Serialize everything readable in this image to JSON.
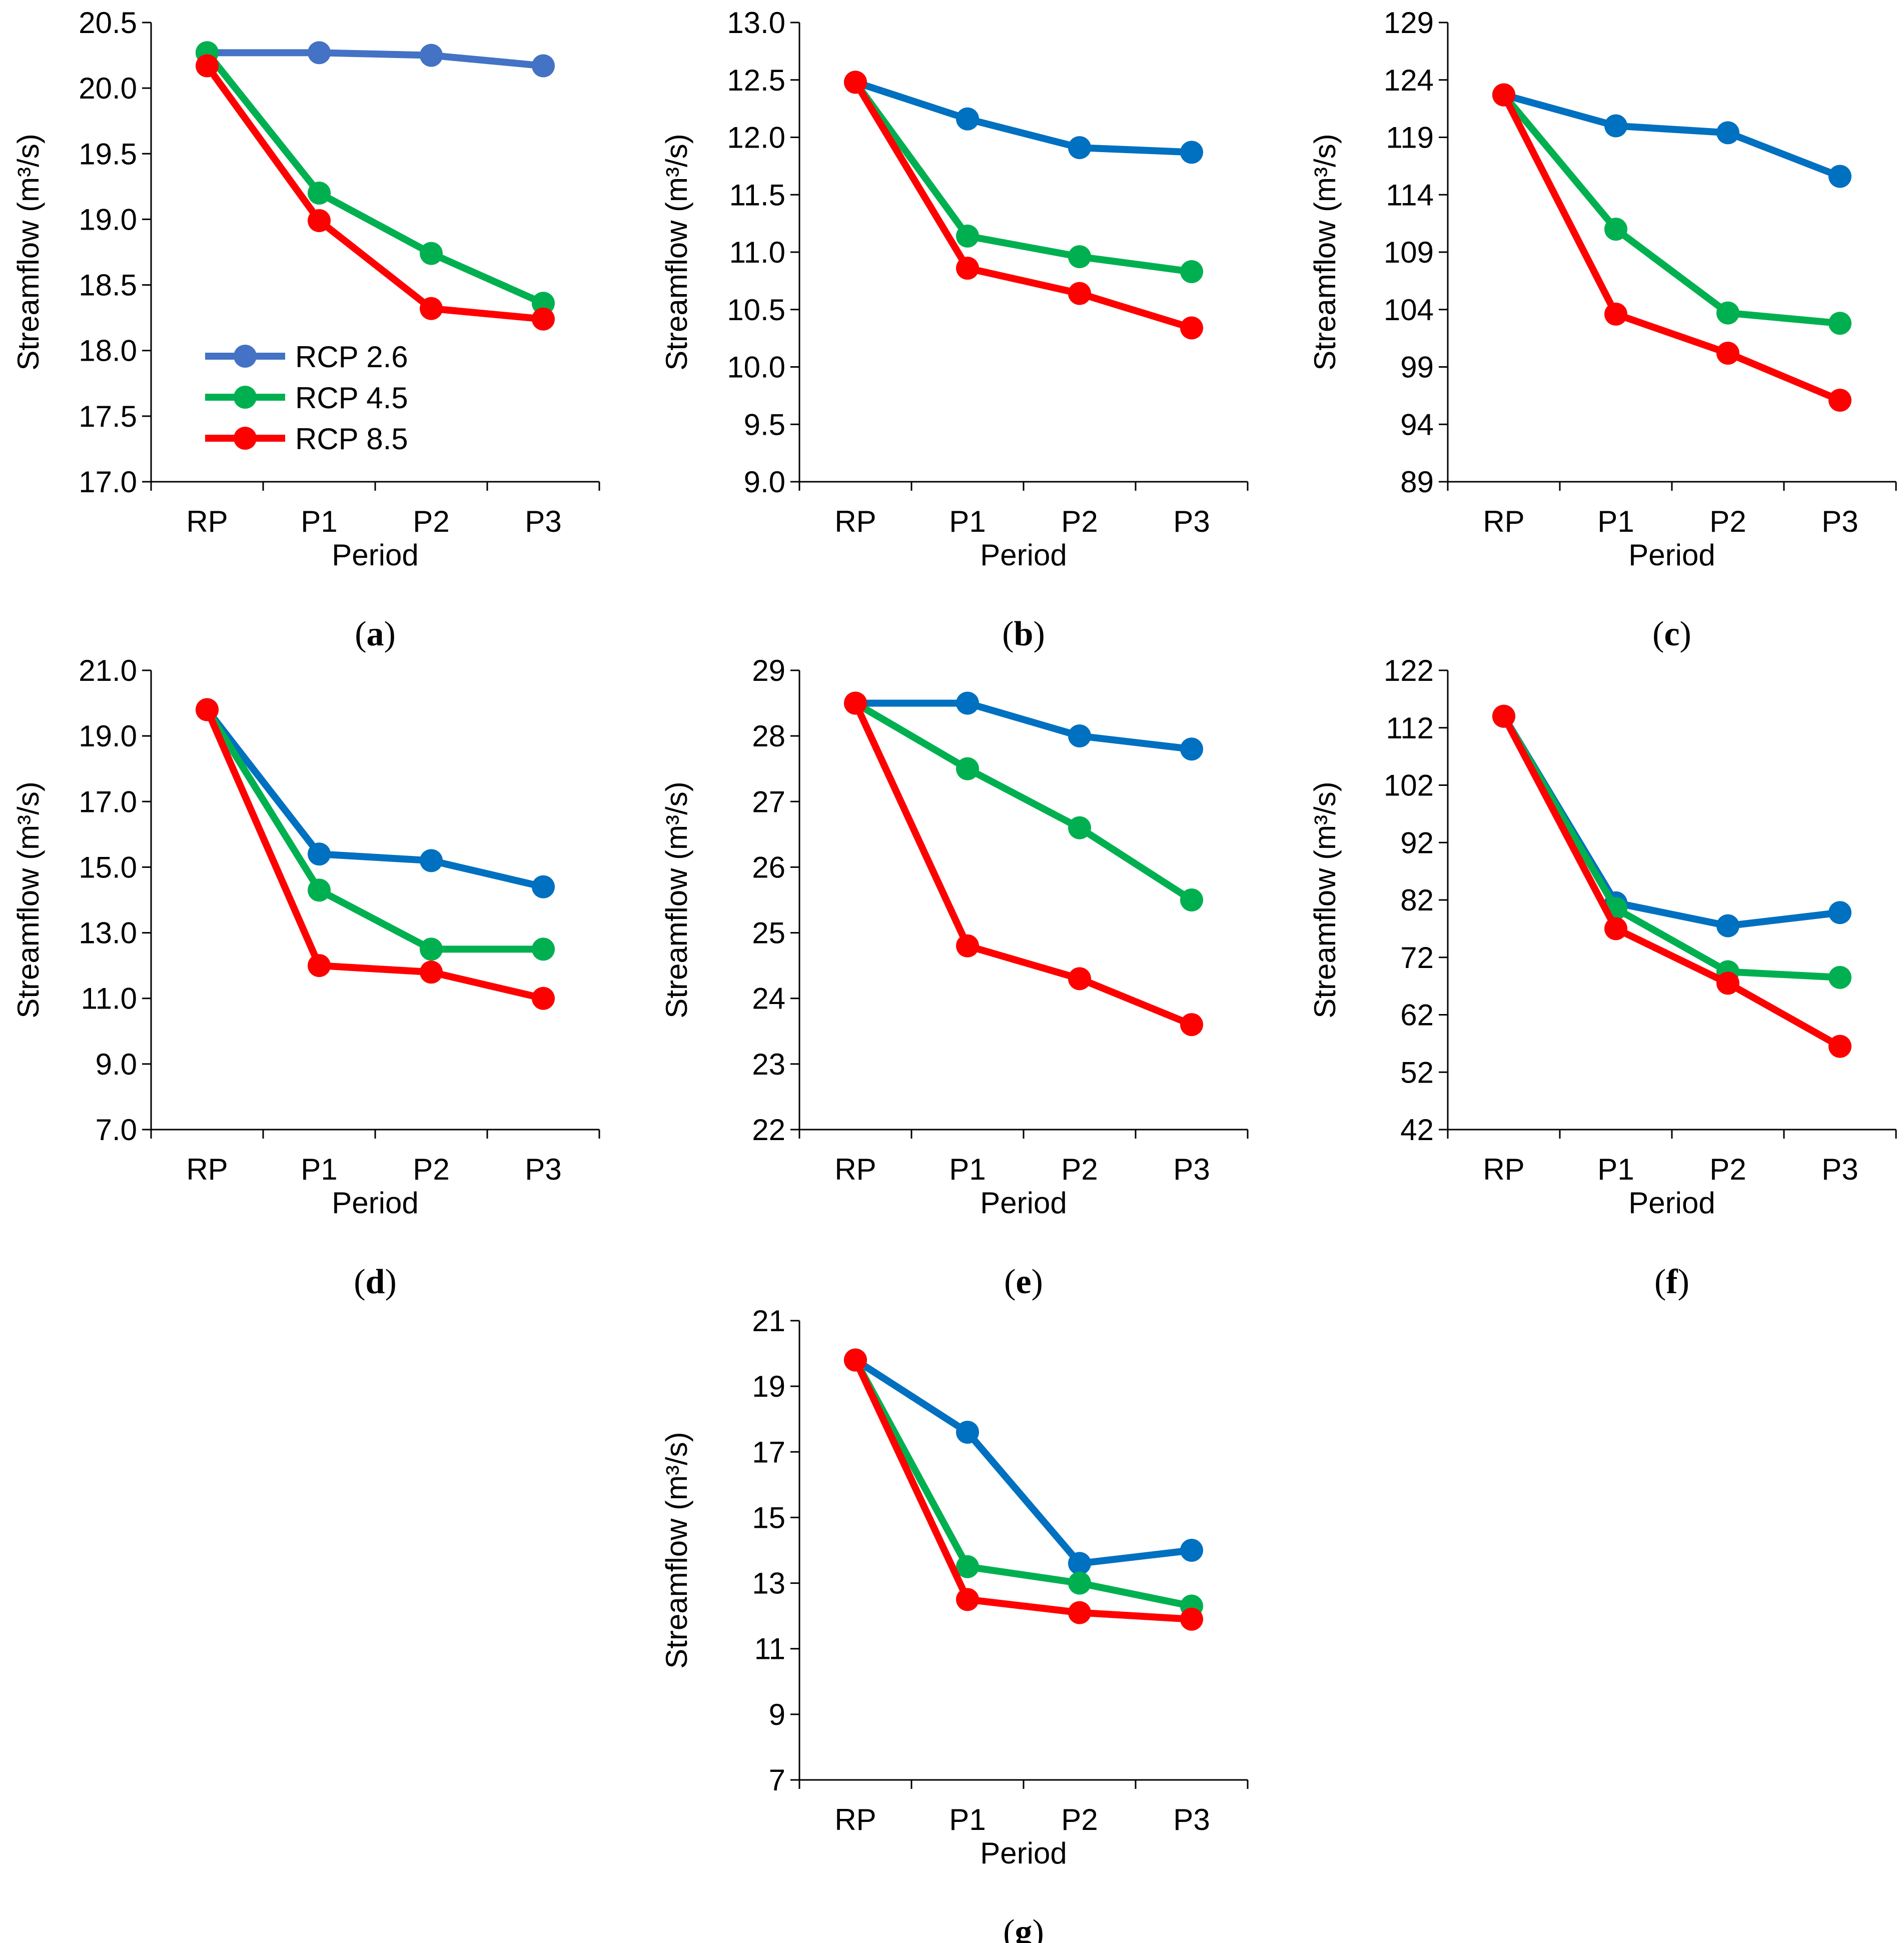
{
  "figure": {
    "series_names": [
      "RCP 2.6",
      "RCP 4.5",
      "RCP 8.5"
    ],
    "series_colors": [
      "#4472C4",
      "#00B050",
      "#FF0000"
    ],
    "legend_labels": [
      "RCP 2.6",
      "RCP 4.5",
      "RCP 8.5"
    ],
    "legend_colors": [
      "#4472C4",
      "#00B050",
      "#FF0000"
    ]
  },
  "chart_data": [
    {
      "type": "line",
      "panel_label": "a",
      "xlabel": "Period",
      "ylabel": "Streamflow (m³/s)",
      "categories": [
        "RP",
        "P1",
        "P2",
        "P3"
      ],
      "ylim": [
        17.0,
        20.5
      ],
      "yticks": [
        "17.0",
        "17.5",
        "18.0",
        "18.5",
        "19.0",
        "19.5",
        "20.0",
        "20.5"
      ],
      "legend": true,
      "series": [
        {
          "name": "RCP 2.6",
          "color": "#4472C4",
          "values": [
            20.27,
            20.27,
            20.25,
            20.17
          ]
        },
        {
          "name": "RCP 4.5",
          "color": "#00B050",
          "values": [
            20.27,
            19.2,
            18.74,
            18.36
          ]
        },
        {
          "name": "RCP 8.5",
          "color": "#FF0000",
          "values": [
            20.17,
            18.99,
            18.32,
            18.24
          ]
        }
      ]
    },
    {
      "type": "line",
      "panel_label": "b",
      "xlabel": "Period",
      "ylabel": "Streamflow (m³/s)",
      "categories": [
        "RP",
        "P1",
        "P2",
        "P3"
      ],
      "ylim": [
        9.0,
        13.0
      ],
      "yticks": [
        "9.0",
        "9.5",
        "10.0",
        "10.5",
        "11.0",
        "11.5",
        "12.0",
        "12.5",
        "13.0"
      ],
      "legend": false,
      "series": [
        {
          "name": "RCP 2.6",
          "color": "#0070C0",
          "values": [
            12.48,
            12.16,
            11.91,
            11.87
          ]
        },
        {
          "name": "RCP 4.5",
          "color": "#00B050",
          "values": [
            12.48,
            11.14,
            10.96,
            10.83
          ]
        },
        {
          "name": "RCP 8.5",
          "color": "#FF0000",
          "values": [
            12.48,
            10.86,
            10.64,
            10.34
          ]
        }
      ]
    },
    {
      "type": "line",
      "panel_label": "c",
      "xlabel": "Period",
      "ylabel": "Streamflow (m³/s)",
      "categories": [
        "RP",
        "P1",
        "P2",
        "P3"
      ],
      "ylim": [
        89,
        129
      ],
      "yticks": [
        "89",
        "94",
        "99",
        "104",
        "109",
        "114",
        "119",
        "124",
        "129"
      ],
      "legend": false,
      "series": [
        {
          "name": "RCP 2.6",
          "color": "#0070C0",
          "values": [
            122.7,
            120.0,
            119.4,
            115.6
          ]
        },
        {
          "name": "RCP 4.5",
          "color": "#00B050",
          "values": [
            122.7,
            111.0,
            103.7,
            102.8
          ]
        },
        {
          "name": "RCP 8.5",
          "color": "#FF0000",
          "values": [
            122.7,
            103.6,
            100.2,
            96.1
          ]
        }
      ]
    },
    {
      "type": "line",
      "panel_label": "d",
      "xlabel": "Period",
      "ylabel": "Streamflow (m³/s)",
      "categories": [
        "RP",
        "P1",
        "P2",
        "P3"
      ],
      "ylim": [
        7.0,
        21.0
      ],
      "yticks": [
        "7.0",
        "9.0",
        "11.0",
        "13.0",
        "15.0",
        "17.0",
        "19.0",
        "21.0"
      ],
      "legend": false,
      "series": [
        {
          "name": "RCP 2.6",
          "color": "#0070C0",
          "values": [
            19.8,
            15.4,
            15.2,
            14.4
          ]
        },
        {
          "name": "RCP 4.5",
          "color": "#00B050",
          "values": [
            19.8,
            14.3,
            12.5,
            12.5
          ]
        },
        {
          "name": "RCP 8.5",
          "color": "#FF0000",
          "values": [
            19.8,
            12.0,
            11.8,
            11.0
          ]
        }
      ]
    },
    {
      "type": "line",
      "panel_label": "e",
      "xlabel": "Period",
      "ylabel": "Streamflow (m³/s)",
      "categories": [
        "RP",
        "P1",
        "P2",
        "P3"
      ],
      "ylim": [
        22,
        29
      ],
      "yticks": [
        "22",
        "23",
        "24",
        "25",
        "26",
        "27",
        "28",
        "29"
      ],
      "legend": false,
      "series": [
        {
          "name": "RCP 2.6",
          "color": "#0070C0",
          "values": [
            28.5,
            28.5,
            28.0,
            27.8
          ]
        },
        {
          "name": "RCP 4.5",
          "color": "#00B050",
          "values": [
            28.5,
            27.5,
            26.6,
            25.5
          ]
        },
        {
          "name": "RCP 8.5",
          "color": "#FF0000",
          "values": [
            28.5,
            24.8,
            24.3,
            23.6
          ]
        }
      ]
    },
    {
      "type": "line",
      "panel_label": "f",
      "xlabel": "Period",
      "ylabel": "Streamflow (m³/s)",
      "categories": [
        "RP",
        "P1",
        "P2",
        "P3"
      ],
      "ylim": [
        42,
        122
      ],
      "yticks": [
        "42",
        "52",
        "62",
        "72",
        "82",
        "92",
        "102",
        "112",
        "122"
      ],
      "legend": false,
      "series": [
        {
          "name": "RCP 2.6",
          "color": "#0070C0",
          "values": [
            114.0,
            81.5,
            77.5,
            79.8
          ]
        },
        {
          "name": "RCP 4.5",
          "color": "#00B050",
          "values": [
            114.0,
            80.5,
            69.5,
            68.5
          ]
        },
        {
          "name": "RCP 8.5",
          "color": "#FF0000",
          "values": [
            114.0,
            77.0,
            67.5,
            56.5
          ]
        }
      ]
    },
    {
      "type": "line",
      "panel_label": "g",
      "xlabel": "Period",
      "ylabel": "Streamflow (m³/s)",
      "categories": [
        "RP",
        "P1",
        "P2",
        "P3"
      ],
      "ylim": [
        7,
        21
      ],
      "yticks": [
        "7",
        "9",
        "11",
        "13",
        "15",
        "17",
        "19",
        "21"
      ],
      "legend": false,
      "series": [
        {
          "name": "RCP 2.6",
          "color": "#0070C0",
          "values": [
            19.8,
            17.6,
            13.6,
            14.0
          ]
        },
        {
          "name": "RCP 4.5",
          "color": "#00B050",
          "values": [
            19.8,
            13.5,
            13.0,
            12.3
          ]
        },
        {
          "name": "RCP 8.5",
          "color": "#FF0000",
          "values": [
            19.8,
            12.5,
            12.1,
            11.9
          ]
        }
      ]
    }
  ]
}
